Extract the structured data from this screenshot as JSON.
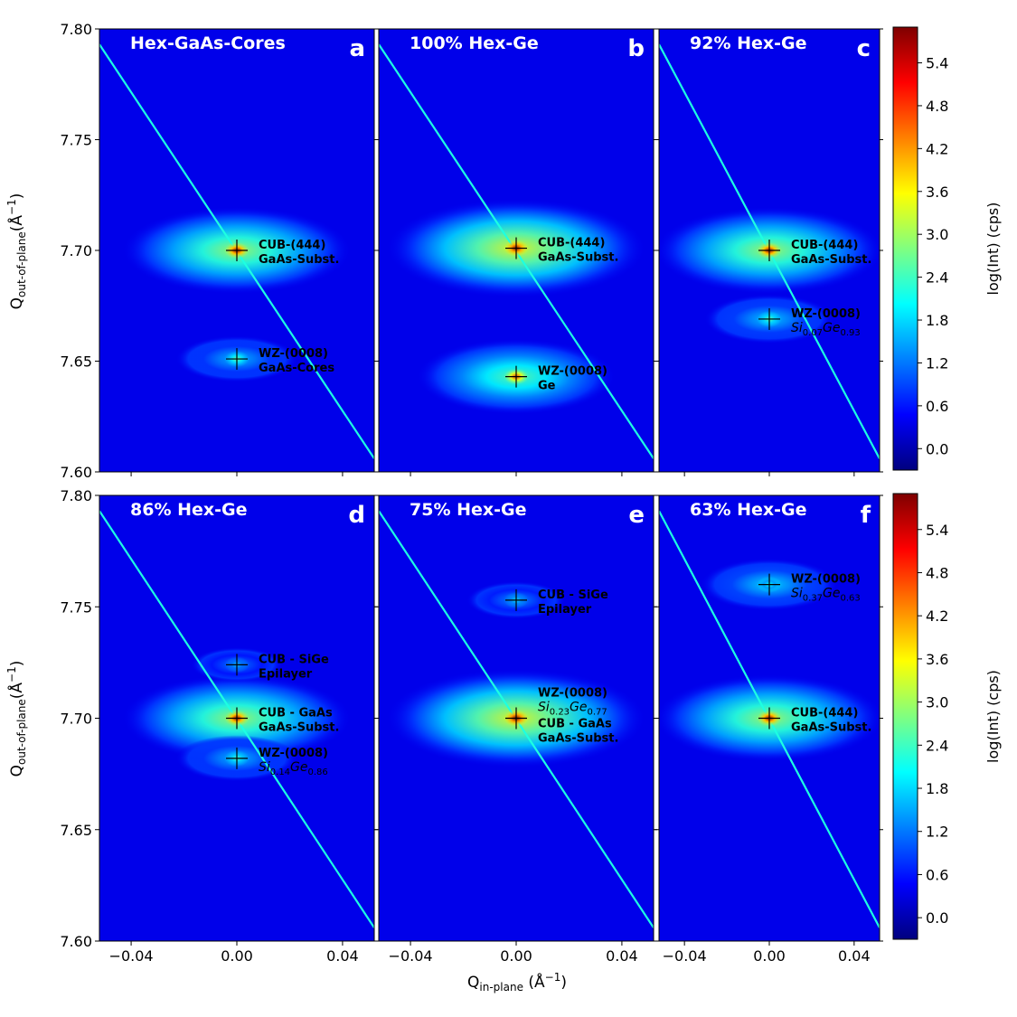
{
  "colors": {
    "background": "#00007f",
    "panel_label": "#ffffff",
    "annotation": "#000000",
    "stops": [
      "#00007f",
      "#0000ff",
      "#0080ff",
      "#00ffff",
      "#80ff80",
      "#ffff00",
      "#ff8000",
      "#ff0000",
      "#7f0000"
    ]
  },
  "chart_data": {
    "type": "heatmap",
    "xlabel_main": "Q",
    "xlabel_sub": "in-plane",
    "xlabel_unit": " (Å",
    "xlabel_exp": "−1",
    "xlabel_close": ")",
    "ylabel_main": "Q",
    "ylabel_sub": "out-of-plane",
    "ylabel_unit": "(Å",
    "ylabel_exp": "−1",
    "ylabel_close": ")",
    "xlim": [
      -0.052,
      0.052
    ],
    "ylim": [
      7.6,
      7.8
    ],
    "x_ticks": [
      -0.04,
      0.0,
      0.04
    ],
    "x_tick_labels": [
      "−0.04",
      "0.00",
      "0.04"
    ],
    "y_ticks": [
      7.6,
      7.65,
      7.7,
      7.75,
      7.8
    ],
    "y_tick_labels": [
      "7.60",
      "7.65",
      "7.70",
      "7.75",
      "7.80"
    ],
    "colorbar": {
      "label": "log(Int) (cps)",
      "range": [
        -0.3,
        5.9
      ],
      "ticks": [
        0.0,
        0.6,
        1.2,
        1.8,
        2.4,
        3.0,
        3.6,
        4.2,
        4.8,
        5.4
      ],
      "tick_labels": [
        "0.0",
        "0.6",
        "1.2",
        "1.8",
        "2.4",
        "3.0",
        "3.6",
        "4.2",
        "4.8",
        "5.4"
      ]
    },
    "panels": [
      {
        "letter": "a",
        "title": "Hex-GaAs-Cores",
        "streak": [
          [
            -0.052,
            7.793
          ],
          [
            0.052,
            7.606
          ]
        ],
        "peaks": [
          {
            "x": 0.0,
            "y": 7.7,
            "intensity": 5.6,
            "spread_x": 0.0,
            "spread_y": 0.0,
            "halo": 3.0
          },
          {
            "x": 0.0,
            "y": 7.651,
            "intensity": 2.6,
            "spread_x": 0.0,
            "spread_y": 0.0,
            "halo": 1.6
          }
        ],
        "annotations": [
          {
            "x": 0.0,
            "y": 7.7,
            "lines": [
              {
                "text": "CUB-(444)"
              },
              {
                "text": "GaAs-Subst."
              }
            ]
          },
          {
            "x": 0.0,
            "y": 7.651,
            "lines": [
              {
                "text": "WZ-(0008)"
              },
              {
                "text": "GaAs-Cores"
              }
            ]
          }
        ]
      },
      {
        "letter": "b",
        "title": "100% Hex-Ge",
        "streak": [
          [
            -0.052,
            7.793
          ],
          [
            0.052,
            7.606
          ]
        ],
        "peaks": [
          {
            "x": 0.0,
            "y": 7.701,
            "intensity": 5.8,
            "halo": 3.4
          },
          {
            "x": 0.0,
            "y": 7.643,
            "intensity": 4.8,
            "halo": 2.6
          }
        ],
        "annotations": [
          {
            "x": 0.0,
            "y": 7.701,
            "lines": [
              {
                "text": "CUB-(444)"
              },
              {
                "text": "GaAs-Subst."
              }
            ]
          },
          {
            "x": 0.0,
            "y": 7.643,
            "lines": [
              {
                "text": "WZ-(0008)"
              },
              {
                "text": "Ge"
              }
            ]
          }
        ]
      },
      {
        "letter": "c",
        "title": "92% Hex-Ge",
        "streak": [
          [
            -0.052,
            7.793
          ],
          [
            0.052,
            7.606
          ]
        ],
        "peaks": [
          {
            "x": 0.0,
            "y": 7.7,
            "intensity": 5.6,
            "halo": 3.0
          },
          {
            "x": 0.0,
            "y": 7.669,
            "intensity": 2.5,
            "halo": 1.7
          }
        ],
        "annotations": [
          {
            "x": 0.0,
            "y": 7.7,
            "lines": [
              {
                "text": "CUB-(444)"
              },
              {
                "text": "GaAs-Subst."
              }
            ]
          },
          {
            "x": 0.0,
            "y": 7.669,
            "lines": [
              {
                "text": "WZ-(0008)"
              },
              {
                "text": "Si0.07Ge0.93",
                "si": "0.07",
                "ge": "0.93"
              }
            ]
          }
        ]
      },
      {
        "letter": "d",
        "title": "86% Hex-Ge",
        "streak": [
          [
            -0.052,
            7.793
          ],
          [
            0.052,
            7.606
          ]
        ],
        "peaks": [
          {
            "x": 0.0,
            "y": 7.7,
            "intensity": 5.6,
            "halo": 3.0
          },
          {
            "x": 0.0,
            "y": 7.682,
            "intensity": 2.4,
            "halo": 1.6
          },
          {
            "x": 0.0,
            "y": 7.724,
            "intensity": 1.6,
            "halo": 1.2
          }
        ],
        "annotations": [
          {
            "x": 0.0,
            "y": 7.724,
            "lines": [
              {
                "text": "CUB - SiGe"
              },
              {
                "text": "Epilayer"
              }
            ]
          },
          {
            "x": 0.0,
            "y": 7.7,
            "lines": [
              {
                "text": "CUB - GaAs"
              },
              {
                "text": "GaAs-Subst."
              }
            ]
          },
          {
            "x": 0.0,
            "y": 7.682,
            "lines": [
              {
                "text": "WZ-(0008)"
              },
              {
                "text": "Si0.14Ge0.86",
                "si": "0.14",
                "ge": "0.86"
              }
            ]
          }
        ]
      },
      {
        "letter": "e",
        "title": "75% Hex-Ge",
        "streak": [
          [
            -0.052,
            7.793
          ],
          [
            0.052,
            7.606
          ]
        ],
        "peaks": [
          {
            "x": 0.0,
            "y": 7.7,
            "intensity": 5.9,
            "halo": 3.4
          },
          {
            "x": 0.0,
            "y": 7.753,
            "intensity": 1.8,
            "halo": 1.3
          }
        ],
        "annotations": [
          {
            "x": 0.0,
            "y": 7.753,
            "lines": [
              {
                "text": "CUB - SiGe"
              },
              {
                "text": "Epilayer"
              }
            ]
          },
          {
            "x": 0.0,
            "y": 7.7,
            "lines": [
              {
                "text": "WZ-(0008)"
              },
              {
                "text": "Si0.23Ge0.77",
                "si": "0.23",
                "ge": "0.77"
              }
            ],
            "place": "above"
          },
          {
            "x": 0.0,
            "y": 7.7,
            "lines": [
              {
                "text": "CUB - GaAs"
              },
              {
                "text": "GaAs-Subst."
              }
            ],
            "place": "below"
          }
        ]
      },
      {
        "letter": "f",
        "title": "63% Hex-Ge",
        "streak": [
          [
            -0.052,
            7.793
          ],
          [
            0.052,
            7.606
          ]
        ],
        "peaks": [
          {
            "x": 0.0,
            "y": 7.7,
            "intensity": 5.6,
            "halo": 3.0
          },
          {
            "x": 0.0,
            "y": 7.76,
            "intensity": 2.0,
            "halo": 1.8
          }
        ],
        "annotations": [
          {
            "x": 0.0,
            "y": 7.76,
            "lines": [
              {
                "text": "WZ-(0008)"
              },
              {
                "text": "Si0.37Ge0.63",
                "si": "0.37",
                "ge": "0.63"
              }
            ]
          },
          {
            "x": 0.0,
            "y": 7.7,
            "lines": [
              {
                "text": "CUB-(444)"
              },
              {
                "text": "GaAs-Subst."
              }
            ]
          }
        ]
      }
    ]
  }
}
